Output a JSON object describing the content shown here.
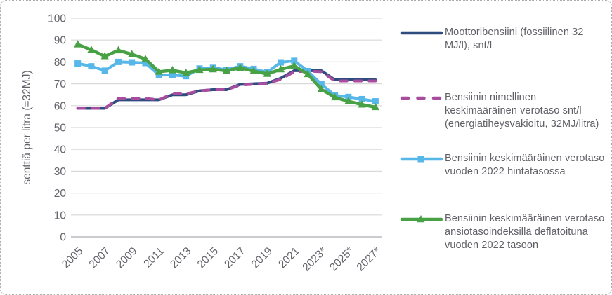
{
  "figure": {
    "background": "#ffffff",
    "border_color": "#a9a9af"
  },
  "colors": {
    "grid_line": "#d9d9d9",
    "axis_line": "#b9b9bf",
    "tick_text": "#63636b",
    "legend_text": "#5f5f66"
  },
  "chart_data": {
    "type": "line",
    "title": "",
    "xlabel": "",
    "ylabel": "senttiä per litra (=32MJ)",
    "ylim": [
      0,
      100
    ],
    "yticks": [
      0,
      10,
      20,
      30,
      40,
      50,
      60,
      70,
      80,
      90,
      100
    ],
    "grid": "horizontal",
    "legend_position": "right",
    "x": [
      2005,
      2006,
      2007,
      2008,
      2009,
      2010,
      2011,
      2012,
      2013,
      2014,
      2015,
      2016,
      2017,
      2018,
      2019,
      2020,
      2021,
      2022,
      2023,
      2024,
      2025,
      2026,
      2027
    ],
    "xtick_labels": [
      "2005",
      "2007",
      "2009",
      "2011",
      "2013",
      "2015",
      "2017",
      "2019",
      "2021",
      "2023*",
      "2025*",
      "2027*"
    ],
    "series": [
      {
        "label": "Moottoribensiini (fossiilinen 32 MJ/l), snt/l",
        "color": "#2e4d7e",
        "line_style": "solid",
        "marker": "none",
        "values": [
          58.8,
          58.8,
          58.8,
          62.7,
          62.7,
          62.7,
          62.7,
          65,
          65,
          66.8,
          67.3,
          67.3,
          69.7,
          70,
          70.3,
          72.5,
          76,
          76,
          76,
          71.8,
          71.8,
          71.8,
          71.8
        ]
      },
      {
        "label": "Bensiinin nimellinen keskimääräinen verotaso snt/l (energiatiheysvakioitu, 32MJ/litra)",
        "color": "#a84c9f",
        "line_style": "dashed",
        "marker": "none",
        "values": [
          58.8,
          58.8,
          58.8,
          63.3,
          63.3,
          63.3,
          62.7,
          65.4,
          65.4,
          66.8,
          67.3,
          67.3,
          69.4,
          69.8,
          70.3,
          72,
          75.5,
          75.8,
          75.5,
          71.3,
          71.3,
          71.3,
          71.3
        ]
      },
      {
        "label": "Bensiinin keskimääräinen verotaso vuoden 2022 hintatasossa",
        "color": "#56b7e8",
        "line_style": "solid",
        "marker": "square",
        "values": [
          79.3,
          78,
          76,
          80,
          79.8,
          79.5,
          74,
          74,
          73.5,
          77,
          77.3,
          76.4,
          78,
          76.8,
          75.3,
          79.8,
          80.5,
          75.8,
          69.8,
          64.7,
          64,
          63,
          62
        ]
      },
      {
        "label": "Bensiinin keskimääräinen verotaso ansiotasoindeksillä deflatoituna vuoden 2022 tasoon",
        "color": "#48a145",
        "line_style": "solid",
        "marker": "triangle",
        "values": [
          88,
          85.5,
          82.6,
          85.3,
          83.5,
          81.3,
          75.5,
          76.2,
          75,
          76.3,
          76.6,
          76,
          77.3,
          75.8,
          74.5,
          76.6,
          78.2,
          74.4,
          67.5,
          63.8,
          62,
          60.5,
          59.3
        ]
      }
    ]
  }
}
